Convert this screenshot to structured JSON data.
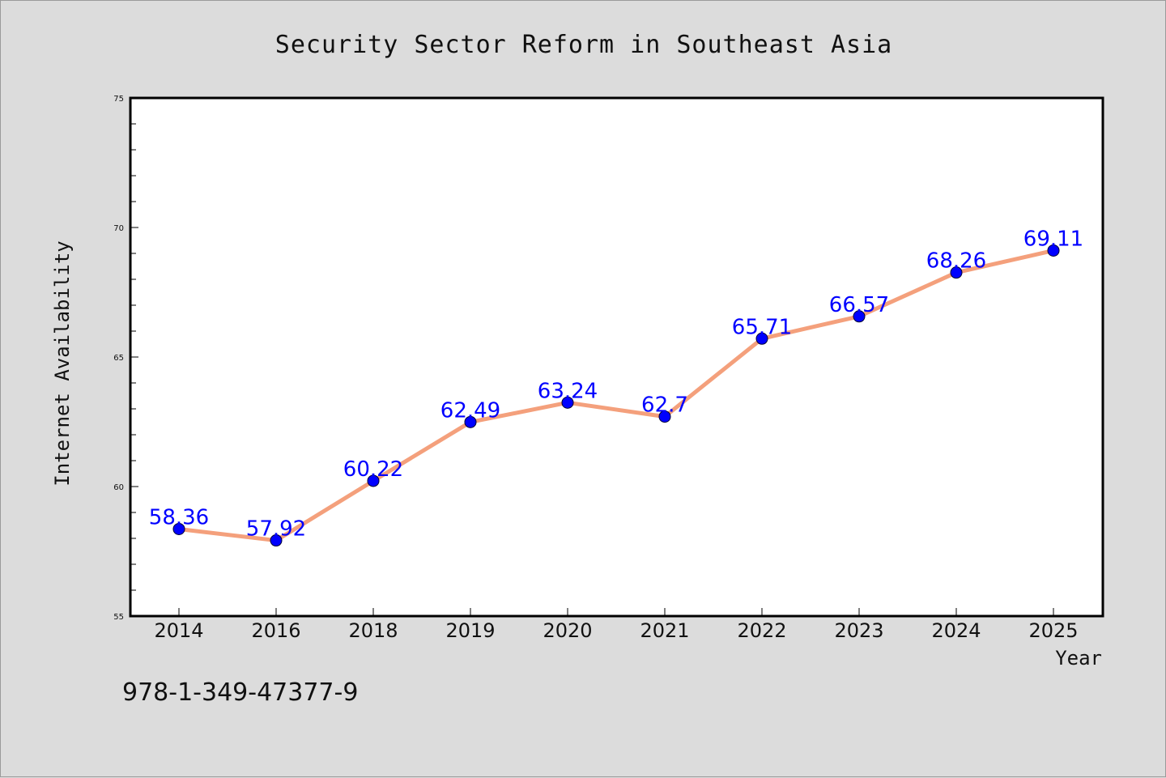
{
  "footer_code": "978-1-349-47377-9",
  "chart_data": {
    "type": "line",
    "title": "Security Sector Reform in Southeast Asia",
    "xlabel": "Year",
    "ylabel": "Internet Availability",
    "categories": [
      "2014",
      "2016",
      "2018",
      "2019",
      "2020",
      "2021",
      "2022",
      "2023",
      "2024",
      "2025"
    ],
    "values": [
      58.36,
      57.92,
      60.22,
      62.49,
      63.24,
      62.7,
      65.71,
      66.57,
      68.26,
      69.11
    ],
    "data_labels": [
      "58.36",
      "57.92",
      "60.22",
      "62.49",
      "63.24",
      "62.7",
      "65.71",
      "66.57",
      "68.26",
      "69.11"
    ],
    "ylim": [
      55,
      75
    ],
    "yticks": [
      "55",
      "60",
      "65",
      "70",
      "75"
    ],
    "grid": false,
    "legend": "none",
    "line_color": "#f4a07c",
    "marker_color": "#0000ff"
  }
}
